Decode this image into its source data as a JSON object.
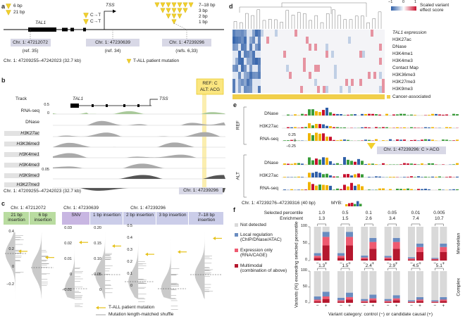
{
  "panel_a": {
    "label": "a",
    "deletion_sizes": [
      "6 bp",
      "21 bp"
    ],
    "gene": "TAL1",
    "tss": "TSS",
    "snvs": [
      "C→T",
      "C→T"
    ],
    "insertion_sizes": [
      "7–18 bp",
      "3 bp",
      "2 bp",
      "1 bp"
    ],
    "loci": [
      {
        "position": "Chr. 1: 47212072",
        "ref": "(ref. 35)"
      },
      {
        "position": "Chr. 1: 47230639",
        "ref": "(ref. 34)"
      },
      {
        "position": "Chr. 1: 47239296",
        "ref": "(refs. 6,33)"
      }
    ],
    "region": "Chr. 1: 47209255–47242023 (32.7 kb)",
    "legend": "T-ALL patient mutation"
  },
  "panel_b": {
    "label": "b",
    "track_header": "Track",
    "tracks": [
      "RNA-seq",
      "DNase",
      "H3K27ac",
      "H3K36me3",
      "H3K4me1",
      "H3K4me3",
      "H3K9me3",
      "H3K27me3"
    ],
    "gene": "TAL1",
    "tss": "TSS",
    "ref_allele": "REF: C",
    "alt_allele": "ALT: ACG",
    "scale_labels": [
      "0.5",
      "0",
      "0.05"
    ],
    "region": "Chr. 1: 47209255–47242023 (32.7 kb)",
    "variant": "Chr. 1: 47239296"
  },
  "panel_c": {
    "label": "c",
    "loci": [
      "Chr. 1: 47212072",
      "Chr. 1: 47230639",
      "Chr. 1: 47239296"
    ],
    "groups": [
      "21 bp insertion",
      "6 bp insertion",
      "SNV",
      "1 bp insertion",
      "2 bp insertion",
      "3 bp insertion",
      "7–18 bp insertion"
    ],
    "tick_sets": [
      [
        "0.4",
        "0.2",
        "0",
        "−0.2"
      ],
      [
        "0.03",
        "0.02",
        "0.01",
        "0",
        "−0.01"
      ],
      [
        "0.20",
        "0.15",
        "0.10",
        "0.05",
        "0"
      ],
      [
        "0.5",
        "0.4",
        "0.3",
        "0.2",
        "0.1",
        "0"
      ]
    ],
    "legend": [
      "T-ALL patient mutation",
      "Mutation length-matched shuffle"
    ]
  },
  "panel_d": {
    "label": "d",
    "scale": [
      "−1",
      "0",
      "1"
    ],
    "scale_title": "Scaled variant effect score",
    "rows": [
      "TAL1 expression",
      "H3K27ac",
      "DNase",
      "H3K4me1",
      "H3K4me3",
      "Contact Map",
      "H3K36me3",
      "H3K27me3",
      "H3K9me3"
    ],
    "annotation": "Cancer-associated"
  },
  "panel_e": {
    "label": "e",
    "groups": [
      "REF",
      "ALT"
    ],
    "tracks": [
      "DNase",
      "H3K27ac",
      "RNA-seq"
    ],
    "scale_labels": [
      "0.25",
      "0",
      "−0.25"
    ],
    "variant": "Chr. 1: 47239296: C > ACG",
    "region": "Chr. 1: 47239276–47239316 (40 bp)",
    "motif": "MYB:"
  },
  "panel_f": {
    "label": "f",
    "percentile_title": "Selected percentile",
    "enrichment_title": "Enrichment",
    "selected_percentile": [
      "1.0",
      "0.5",
      "0.1",
      "0.05",
      "0.01",
      "0.005"
    ],
    "y_label": "Variants (%) exceeding selected percentile",
    "x_label": "Variant category: control (−) or candidate causal (+)"
  },
  "chart_data": [
    {
      "type": "bar",
      "stacked": true,
      "title": "Mendelian",
      "enrichment": [
        1.3,
        1.5,
        2.6,
        3.4,
        7.4,
        10.7
      ],
      "categories": [
        "−",
        "+",
        "−",
        "+",
        "−",
        "+",
        "−",
        "+",
        "−",
        "+",
        "−",
        "+"
      ],
      "ylim": [
        0,
        100
      ],
      "yticks": [
        0,
        50,
        100
      ],
      "series": [
        {
          "name": "Not detected",
          "color": "#d9d9d9",
          "values": [
            78,
            15,
            78,
            15,
            85,
            33,
            86,
            33,
            90,
            50,
            92,
            50
          ]
        },
        {
          "name": "Local regulation",
          "description": "(ChIP/DNase/ATAC)",
          "color": "#6a8cc0",
          "values": [
            8,
            15,
            8,
            15,
            6,
            12,
            5,
            12,
            4,
            10,
            3,
            10
          ]
        },
        {
          "name": "Expression only",
          "description": "(RNA/CAGE)",
          "color": "#ee5a70",
          "values": [
            6,
            25,
            6,
            25,
            4,
            20,
            4,
            20,
            3,
            15,
            2,
            15
          ]
        },
        {
          "name": "Multimodal",
          "description": "(combination of above)",
          "color": "#b5172e",
          "values": [
            8,
            45,
            8,
            45,
            5,
            35,
            5,
            35,
            3,
            25,
            3,
            25
          ]
        }
      ]
    },
    {
      "type": "bar",
      "stacked": true,
      "title": "Complex",
      "enrichment": [
        1.3,
        1.5,
        2.4,
        2.9,
        4.5,
        5.1
      ],
      "categories": [
        "−",
        "+",
        "−",
        "+",
        "−",
        "+",
        "−",
        "+",
        "−",
        "+",
        "−",
        "+"
      ],
      "ylim": [
        0,
        100
      ],
      "yticks": [
        0,
        50,
        100
      ],
      "series": [
        {
          "name": "Not detected",
          "color": "#d9d9d9",
          "values": [
            80,
            65,
            84,
            68,
            88,
            74,
            88,
            76,
            92,
            82,
            92,
            82
          ]
        },
        {
          "name": "Local regulation",
          "color": "#6a8cc0",
          "values": [
            10,
            15,
            8,
            14,
            6,
            12,
            6,
            10,
            4,
            8,
            4,
            8
          ]
        },
        {
          "name": "Expression only",
          "color": "#ee5a70",
          "values": [
            5,
            8,
            4,
            8,
            3,
            6,
            3,
            6,
            2,
            4,
            2,
            4
          ]
        },
        {
          "name": "Multimodal",
          "color": "#b5172e",
          "values": [
            5,
            12,
            4,
            10,
            3,
            8,
            3,
            8,
            2,
            6,
            2,
            6
          ]
        }
      ]
    }
  ]
}
